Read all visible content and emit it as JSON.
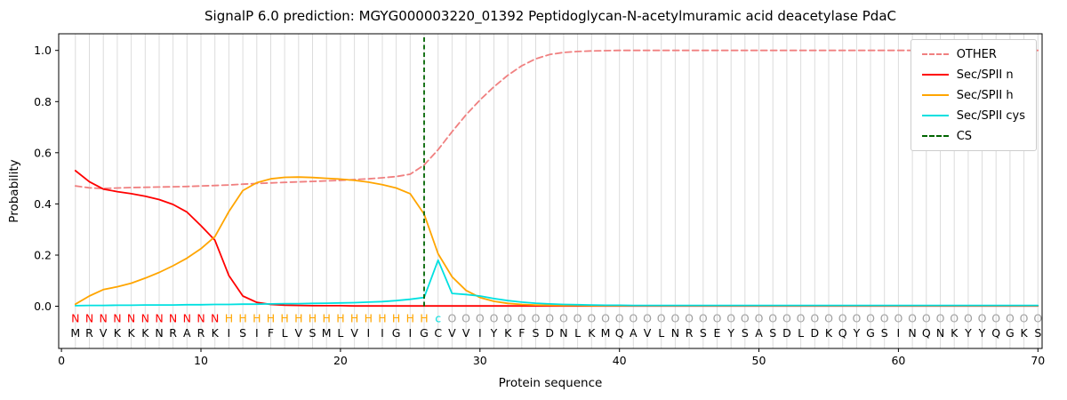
{
  "chart_data": {
    "type": "line",
    "title": "SignalP 6.0 prediction: MGYG000003220_01392 Peptidoglycan-N-acetylmuramic acid deacetylase PdaC",
    "xlabel": "Protein sequence",
    "ylabel": "Probability",
    "xlim": [
      -0.2,
      70.3
    ],
    "ylim": [
      -0.165,
      1.065
    ],
    "x_ticks": [
      0,
      10,
      20,
      30,
      40,
      50,
      60,
      70
    ],
    "y_ticks": [
      0.0,
      0.2,
      0.4,
      0.6,
      0.8,
      1.0
    ],
    "x_range": [
      1,
      70
    ],
    "grid": "vertical-per-residue",
    "grid_color": "#dcdcdc",
    "legend_position": "upper right",
    "cs_position": 26,
    "cs_color": "#006400",
    "cs_label": "CS",
    "sequence": "MRVKKKNRARKISIFLVSMLVIIGIGCVVIYKFSDNLKMQAVLNRSEYSASDLDKQYGSINQNKYYQGKS",
    "regions": "NNNNNNNNNNNHHHHHHHHHHHHHHHcOOOOOOOOOOOOOOOOOOOOOOOOOOOOOOOOOOOOOOOOOOO",
    "region_colors": {
      "N": "#ff0000",
      "H": "#ffa500",
      "c": "#00dddd",
      "O": "#a0a0a0"
    },
    "sequence_color": "#000000",
    "series": [
      {
        "name": "OTHER",
        "color": "#f08080",
        "dash": true,
        "values": [
          0.47,
          0.463,
          0.46,
          0.462,
          0.464,
          0.465,
          0.466,
          0.467,
          0.468,
          0.47,
          0.472,
          0.474,
          0.477,
          0.48,
          0.482,
          0.484,
          0.486,
          0.488,
          0.49,
          0.492,
          0.495,
          0.498,
          0.502,
          0.507,
          0.516,
          0.552,
          0.612,
          0.682,
          0.748,
          0.806,
          0.858,
          0.903,
          0.94,
          0.967,
          0.984,
          0.992,
          0.996,
          0.998,
          0.999,
          1.0,
          1.0,
          1.0,
          1.0,
          1.0,
          1.0,
          1.0,
          1.0,
          1.0,
          1.0,
          1.0,
          1.0,
          1.0,
          1.0,
          1.0,
          1.0,
          1.0,
          1.0,
          1.0,
          1.0,
          1.0,
          1.0,
          1.0,
          1.0,
          1.0,
          1.0,
          1.0,
          1.0,
          1.0,
          1.0,
          1.0
        ]
      },
      {
        "name": "Sec/SPII n",
        "color": "#ff0000",
        "dash": false,
        "values": [
          0.53,
          0.487,
          0.458,
          0.448,
          0.44,
          0.43,
          0.417,
          0.398,
          0.368,
          0.315,
          0.258,
          0.12,
          0.04,
          0.015,
          0.007,
          0.004,
          0.003,
          0.002,
          0.002,
          0.002,
          0.001,
          0.001,
          0.001,
          0.001,
          0.001,
          0.001,
          0.001,
          0.001,
          0.001,
          0.001,
          0.001,
          0.001,
          0.001,
          0.001,
          0.001,
          0.001,
          0.001,
          0.001,
          0.001,
          0.001,
          0.001,
          0.001,
          0.001,
          0.001,
          0.001,
          0.001,
          0.001,
          0.001,
          0.001,
          0.001,
          0.001,
          0.001,
          0.001,
          0.001,
          0.001,
          0.001,
          0.001,
          0.001,
          0.001,
          0.001,
          0.001,
          0.001,
          0.001,
          0.001,
          0.001,
          0.001,
          0.001,
          0.001,
          0.001,
          0.001
        ]
      },
      {
        "name": "Sec/SPII h",
        "color": "#ffa500",
        "dash": false,
        "values": [
          0.008,
          0.04,
          0.065,
          0.076,
          0.09,
          0.11,
          0.132,
          0.158,
          0.188,
          0.225,
          0.272,
          0.37,
          0.452,
          0.483,
          0.498,
          0.504,
          0.505,
          0.503,
          0.5,
          0.497,
          0.492,
          0.485,
          0.475,
          0.462,
          0.44,
          0.36,
          0.205,
          0.115,
          0.062,
          0.034,
          0.019,
          0.011,
          0.007,
          0.005,
          0.004,
          0.003,
          0.003,
          0.002,
          0.002,
          0.002,
          0.002,
          0.002,
          0.002,
          0.002,
          0.002,
          0.002,
          0.002,
          0.002,
          0.002,
          0.002,
          0.002,
          0.002,
          0.002,
          0.002,
          0.002,
          0.002,
          0.002,
          0.002,
          0.002,
          0.002,
          0.002,
          0.002,
          0.002,
          0.002,
          0.002,
          0.002,
          0.002,
          0.002,
          0.002,
          0.002
        ]
      },
      {
        "name": "Sec/SPII cys",
        "color": "#00e0e0",
        "dash": false,
        "values": [
          0.002,
          0.003,
          0.003,
          0.004,
          0.004,
          0.005,
          0.005,
          0.005,
          0.006,
          0.006,
          0.007,
          0.007,
          0.008,
          0.008,
          0.009,
          0.01,
          0.01,
          0.011,
          0.012,
          0.013,
          0.014,
          0.016,
          0.018,
          0.022,
          0.027,
          0.034,
          0.18,
          0.05,
          0.046,
          0.04,
          0.03,
          0.022,
          0.016,
          0.012,
          0.009,
          0.007,
          0.006,
          0.005,
          0.004,
          0.004,
          0.003,
          0.003,
          0.003,
          0.003,
          0.003,
          0.003,
          0.003,
          0.003,
          0.003,
          0.003,
          0.003,
          0.003,
          0.003,
          0.003,
          0.003,
          0.003,
          0.003,
          0.003,
          0.003,
          0.003,
          0.003,
          0.003,
          0.003,
          0.003,
          0.003,
          0.003,
          0.003,
          0.003,
          0.003,
          0.003
        ]
      }
    ]
  }
}
